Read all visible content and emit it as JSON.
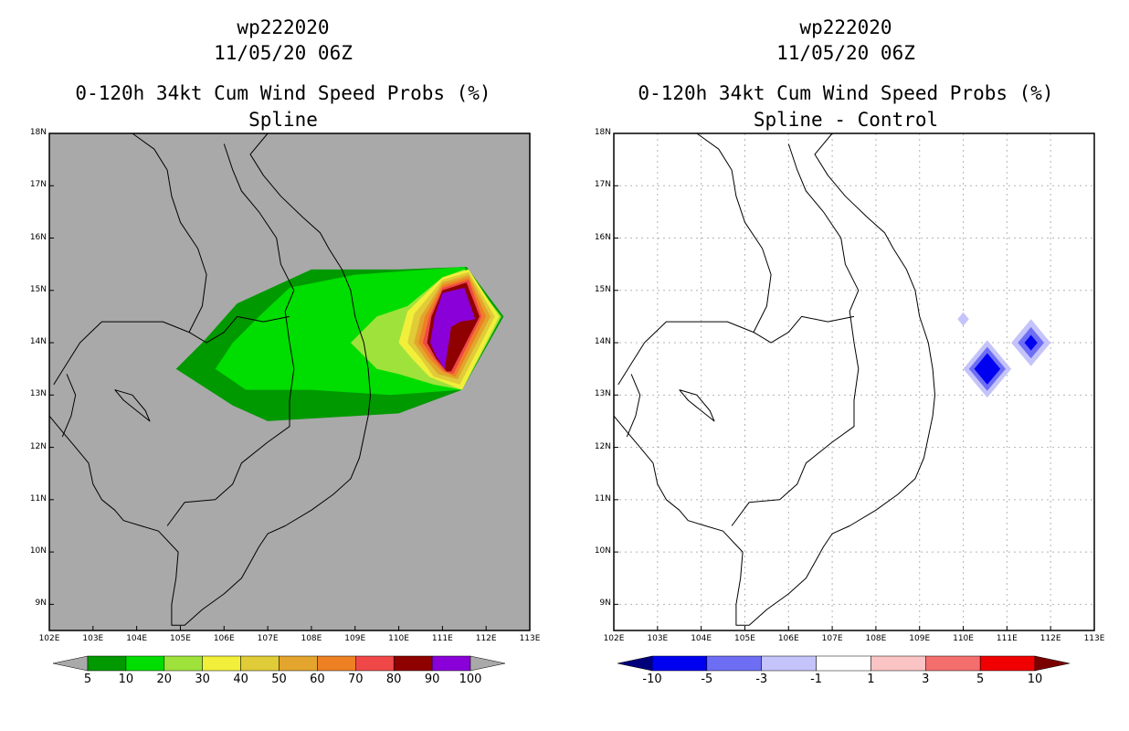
{
  "chart_data": [
    {
      "type": "heatmap",
      "panel": "left",
      "title_lines": [
        "wp222020",
        "11/05/20 06Z",
        "0-120h 34kt Cum Wind Speed Probs (%)",
        "Spline"
      ],
      "xlim": [
        102,
        113
      ],
      "ylim": [
        8.5,
        18
      ],
      "xticks": [
        102,
        103,
        104,
        105,
        106,
        107,
        108,
        109,
        110,
        111,
        112,
        113
      ],
      "xtick_labels": [
        "102E",
        "103E",
        "104E",
        "105E",
        "106E",
        "107E",
        "108E",
        "109E",
        "110E",
        "111E",
        "112E",
        "113E"
      ],
      "yticks": [
        9,
        10,
        11,
        12,
        13,
        14,
        15,
        16,
        17,
        18
      ],
      "ytick_labels": [
        "9N",
        "10N",
        "11N",
        "12N",
        "13N",
        "14N",
        "15N",
        "16N",
        "17N",
        "18N"
      ],
      "background": "#a9a9a9",
      "colorbar": {
        "labels": [
          "5",
          "10",
          "20",
          "30",
          "40",
          "50",
          "60",
          "70",
          "80",
          "90",
          "100"
        ],
        "colors": [
          "#009900",
          "#00dd00",
          "#9fe23c",
          "#f2ef3a",
          "#e0cb38",
          "#e3a52d",
          "#ee8024",
          "#f04848",
          "#8f0000",
          "#8a00d8"
        ],
        "left_end": "#a9a9a9",
        "right_end": "#a9a9a9"
      },
      "contours": [
        {
          "level": 5,
          "color": "#009900",
          "poly": [
            [
              104.9,
              13.5
            ],
            [
              105.5,
              14.0
            ],
            [
              106.3,
              14.75
            ],
            [
              108,
              15.4
            ],
            [
              110,
              15.4
            ],
            [
              111.55,
              15.45
            ],
            [
              112.4,
              14.5
            ],
            [
              111.45,
              13.1
            ],
            [
              110,
              12.65
            ],
            [
              107,
              12.5
            ],
            [
              106.2,
              12.8
            ]
          ]
        },
        {
          "level": 10,
          "color": "#00dd00",
          "poly": [
            [
              105.8,
              13.5
            ],
            [
              106.2,
              14.0
            ],
            [
              106.8,
              14.5
            ],
            [
              107.5,
              15.05
            ],
            [
              109,
              15.3
            ],
            [
              111.5,
              15.45
            ],
            [
              112.35,
              14.5
            ],
            [
              111.45,
              13.1
            ],
            [
              109.8,
              13.0
            ],
            [
              108,
              13.1
            ],
            [
              106.5,
              13.1
            ]
          ]
        },
        {
          "level": 20,
          "color": "#9fe23c",
          "poly": [
            [
              108.9,
              14.0
            ],
            [
              109.5,
              14.5
            ],
            [
              110.2,
              14.7
            ],
            [
              111.0,
              15.25
            ],
            [
              111.5,
              15.4
            ],
            [
              112.35,
              14.5
            ],
            [
              111.45,
              13.1
            ],
            [
              110.8,
              13.2
            ],
            [
              110,
              13.4
            ],
            [
              109.5,
              13.5
            ]
          ]
        },
        {
          "level": 30,
          "color": "#f2ef3a",
          "poly": [
            [
              110.0,
              14.0
            ],
            [
              110.2,
              14.6
            ],
            [
              111.0,
              15.25
            ],
            [
              111.6,
              15.4
            ],
            [
              112.3,
              14.5
            ],
            [
              111.45,
              13.1
            ],
            [
              110.7,
              13.35
            ],
            [
              110.3,
              13.7
            ]
          ]
        },
        {
          "level": 40,
          "color": "#e0cb38",
          "poly": [
            [
              110.2,
              14.0
            ],
            [
              110.35,
              14.55
            ],
            [
              111.0,
              15.2
            ],
            [
              111.6,
              15.35
            ],
            [
              112.2,
              14.5
            ],
            [
              111.4,
              13.2
            ],
            [
              110.8,
              13.35
            ],
            [
              110.5,
              13.7
            ]
          ]
        },
        {
          "level": 50,
          "color": "#e3a52d",
          "poly": [
            [
              110.35,
              14.0
            ],
            [
              110.5,
              14.5
            ],
            [
              111.0,
              15.15
            ],
            [
              111.6,
              15.3
            ],
            [
              112.1,
              14.5
            ],
            [
              111.35,
              13.3
            ],
            [
              110.9,
              13.4
            ],
            [
              110.6,
              13.7
            ]
          ]
        },
        {
          "level": 60,
          "color": "#ee8024",
          "poly": [
            [
              110.45,
              14.0
            ],
            [
              110.6,
              14.5
            ],
            [
              111.0,
              15.1
            ],
            [
              111.6,
              15.25
            ],
            [
              112.0,
              14.5
            ],
            [
              111.3,
              13.35
            ],
            [
              111.0,
              13.45
            ],
            [
              110.7,
              13.7
            ]
          ]
        },
        {
          "level": 70,
          "color": "#f04848",
          "poly": [
            [
              110.55,
              14.0
            ],
            [
              110.7,
              14.5
            ],
            [
              111.0,
              15.05
            ],
            [
              111.6,
              15.2
            ],
            [
              111.9,
              14.5
            ],
            [
              111.25,
              13.4
            ],
            [
              111.05,
              13.45
            ],
            [
              110.8,
              13.7
            ]
          ]
        },
        {
          "level": 80,
          "color": "#8f0000",
          "poly": [
            [
              110.65,
              14.0
            ],
            [
              110.75,
              14.5
            ],
            [
              111.0,
              15.0
            ],
            [
              111.55,
              15.15
            ],
            [
              111.85,
              14.5
            ],
            [
              111.2,
              13.45
            ],
            [
              111.1,
              13.45
            ],
            [
              110.85,
              13.7
            ]
          ]
        },
        {
          "level": 90,
          "color": "#8a00d8",
          "poly": [
            [
              110.72,
              14.0
            ],
            [
              110.82,
              14.5
            ],
            [
              111.0,
              14.95
            ],
            [
              111.5,
              15.05
            ],
            [
              111.75,
              14.45
            ],
            [
              111.4,
              14.4
            ],
            [
              111.2,
              14.3
            ],
            [
              111.05,
              13.5
            ],
            [
              110.85,
              13.75
            ]
          ]
        }
      ]
    },
    {
      "type": "heatmap",
      "panel": "right",
      "title_lines": [
        "wp222020",
        "11/05/20 06Z",
        "0-120h 34kt Cum Wind Speed Probs (%)",
        "Spline - Control"
      ],
      "xlim": [
        102,
        113
      ],
      "ylim": [
        8.5,
        18
      ],
      "xticks": [
        102,
        103,
        104,
        105,
        106,
        107,
        108,
        109,
        110,
        111,
        112,
        113
      ],
      "xtick_labels": [
        "102E",
        "103E",
        "104E",
        "105E",
        "106E",
        "107E",
        "108E",
        "109E",
        "110E",
        "111E",
        "112E",
        "113E"
      ],
      "yticks": [
        9,
        10,
        11,
        12,
        13,
        14,
        15,
        16,
        17,
        18
      ],
      "ytick_labels": [
        "9N",
        "10N",
        "11N",
        "12N",
        "13N",
        "14N",
        "15N",
        "16N",
        "17N",
        "18N"
      ],
      "grid": true,
      "background": "#ffffff",
      "colorbar": {
        "labels": [
          "-10",
          "-5",
          "-3",
          "-1",
          "1",
          "3",
          "5",
          "10"
        ],
        "colors": [
          "#0000f0",
          "#6e6ef5",
          "#c4c4fa",
          "#ffffff",
          "#fac4c4",
          "#f56e6e",
          "#f00000"
        ],
        "left_end": "#00007a",
        "right_end": "#7a0000"
      },
      "features": [
        {
          "lon": 110.55,
          "lat": 13.5,
          "levels": [
            {
              "value": -1,
              "color": "#c4c4fa",
              "r": 0.55
            },
            {
              "value": -3,
              "color": "#6e6ef5",
              "r": 0.42
            },
            {
              "value": -5,
              "color": "#0000f0",
              "r": 0.3
            }
          ]
        },
        {
          "lon": 111.55,
          "lat": 14.0,
          "levels": [
            {
              "value": -1,
              "color": "#c4c4fa",
              "r": 0.45
            },
            {
              "value": -3,
              "color": "#6e6ef5",
              "r": 0.3
            },
            {
              "value": -5,
              "color": "#0000f0",
              "r": 0.15
            }
          ]
        },
        {
          "lon": 110.0,
          "lat": 14.45,
          "levels": [
            {
              "value": -1,
              "color": "#c4c4fa",
              "r": 0.13
            }
          ]
        }
      ]
    }
  ]
}
